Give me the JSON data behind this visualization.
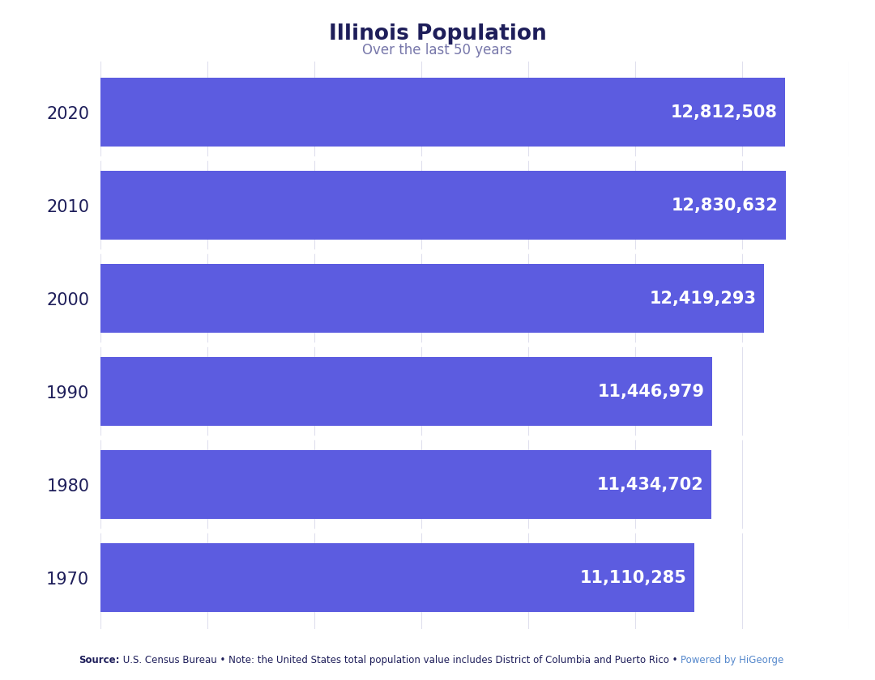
{
  "title": "Illinois Population",
  "subtitle": "Over the last 50 years",
  "title_color": "#1e1e5a",
  "subtitle_color": "#7777aa",
  "years": [
    "2020",
    "2010",
    "2000",
    "1990",
    "1980",
    "1970"
  ],
  "values": [
    12812508,
    12830632,
    12419293,
    11446979,
    11434702,
    11110285
  ],
  "bar_color": "#5c5ce0",
  "value_labels": [
    "12,812,508",
    "12,830,632",
    "12,419,293",
    "11,446,979",
    "11,434,702",
    "11,110,285"
  ],
  "background_color": "#ffffff",
  "xlim_max": 14000000,
  "bar_height": 0.74,
  "label_fontsize": 15,
  "tick_fontsize": 15,
  "title_fontsize": 19,
  "subtitle_fontsize": 12,
  "source_bold": "Source:",
  "source_text": " U.S. Census Bureau • Note: the United States total population value includes District of Columbia and Puerto Rico • ",
  "source_link": "Powered by HiGeorge",
  "source_color": "#1e1e5a",
  "link_color": "#5588cc",
  "source_fontsize": 8.5,
  "grid_color": "#e0e0ee",
  "separator_color": "#ffffff",
  "grid_step": 2000000
}
